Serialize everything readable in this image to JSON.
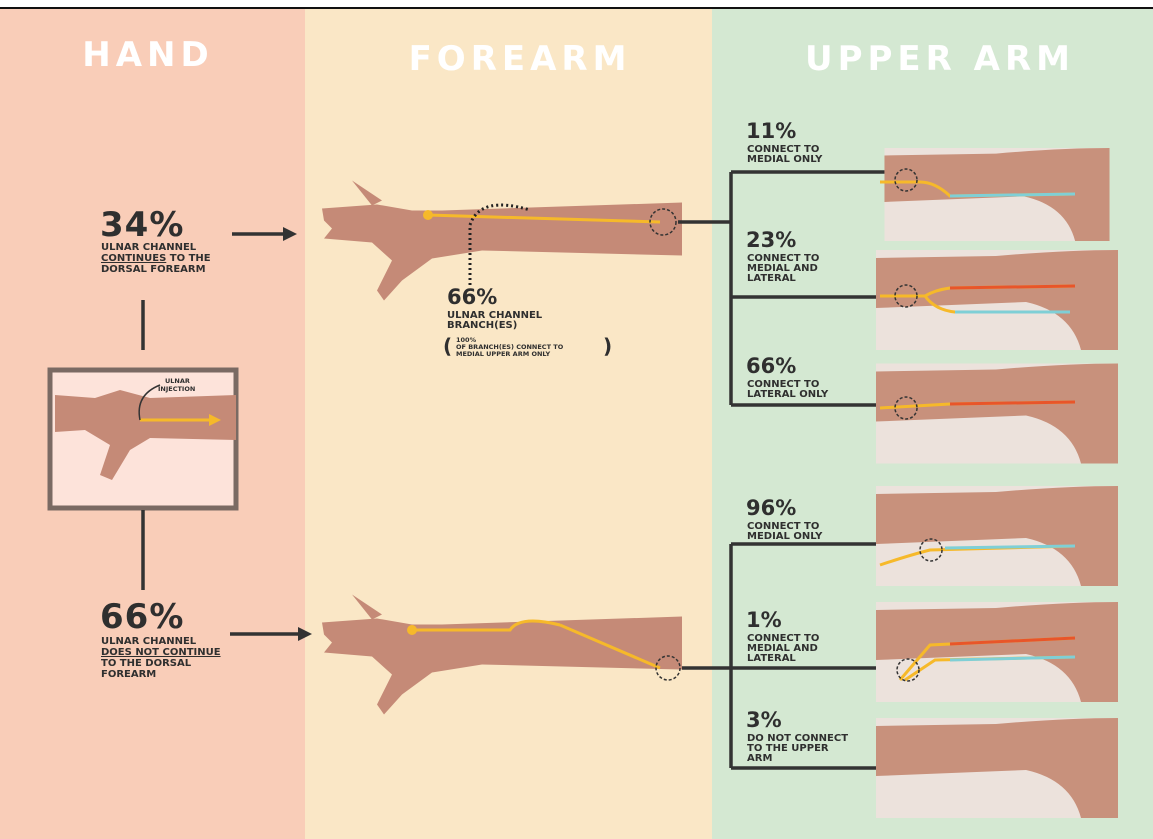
{
  "columns": {
    "hand": "HAND",
    "forearm": "FOREARM",
    "upper_arm": "UPPER ARM"
  },
  "hand": {
    "injection_label": [
      "ULNAR",
      "INJECTION"
    ],
    "continues": {
      "percent": "34%",
      "line1": "ULNAR CHANNEL",
      "emphasis": "CONTINUES",
      "rest": "TO THE",
      "line3": "DORSAL FOREARM"
    },
    "not_continues": {
      "percent": "66%",
      "line1": "ULNAR CHANNEL",
      "emphasis": "DOES NOT CONTINUE",
      "line3": "TO THE DORSAL",
      "line4": "FOREARM"
    }
  },
  "forearm": {
    "branch": {
      "percent": "66%",
      "line1": "ULNAR CHANNEL",
      "line2": "BRANCH(ES)",
      "note_percent": "100%",
      "note_line1": "OF BRANCH(ES) CONNECT TO",
      "note_line2": "MEDIAL UPPER ARM ONLY"
    }
  },
  "upper_arm": {
    "outcomes": [
      {
        "percent": "11%",
        "lines": [
          "CONNECT TO",
          "MEDIAL ONLY"
        ]
      },
      {
        "percent": "23%",
        "lines": [
          "CONNECT TO",
          "MEDIAL AND",
          "LATERAL"
        ]
      },
      {
        "percent": "66%",
        "lines": [
          "CONNECT TO",
          "LATERAL ONLY"
        ]
      },
      {
        "percent": "96%",
        "lines": [
          "CONNECT TO",
          "MEDIAL ONLY"
        ]
      },
      {
        "percent": "1%",
        "lines": [
          "CONNECT TO",
          "MEDIAL AND",
          "LATERAL"
        ]
      },
      {
        "percent": "3%",
        "lines": [
          "DO NOT CONNECT",
          "TO THE UPPER",
          "ARM"
        ]
      }
    ]
  }
}
